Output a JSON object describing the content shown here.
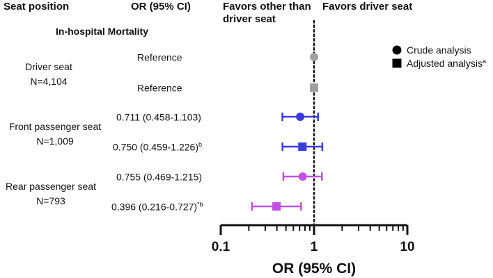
{
  "headers": {
    "seat_position": "Seat position",
    "or_ci": "OR (95% CI)",
    "favors_other_line1": "Favors other than",
    "favors_other_line2": "driver seat",
    "favors_driver": "Favors driver seat"
  },
  "section_title": "In-hospital Mortality",
  "groups": [
    {
      "name": "Driver seat",
      "n": "N=4,104"
    },
    {
      "name": "Front passenger seat",
      "n": "N=1,009"
    },
    {
      "name": "Rear passenger seat",
      "n": "N=793"
    }
  ],
  "rows": [
    {
      "label": "Reference",
      "sup": ""
    },
    {
      "label": "Reference",
      "sup": ""
    },
    {
      "label": "0.711 (0.458-1.103)",
      "sup": ""
    },
    {
      "label": "0.750 (0.459-1.226)",
      "sup": "b"
    },
    {
      "label": "0.755 (0.469-1.215)",
      "sup": ""
    },
    {
      "label": "0.396 (0.216-0.727)",
      "sup": "*b"
    }
  ],
  "legend": {
    "crude": "Crude analysis",
    "adjusted": "Adjusted analysis",
    "adjusted_sup": "a"
  },
  "colors": {
    "reference": "#a0a0a0",
    "front": "#3a3ae0",
    "rear": "#c050e0",
    "axis": "#111111"
  },
  "chart_data": {
    "type": "forest",
    "xlabel": "OR (95% CI)",
    "xscale": "log",
    "xlim": [
      0.1,
      10
    ],
    "ticks": [
      0.1,
      1,
      10
    ],
    "tick_labels": [
      "0.1",
      "1",
      "10"
    ],
    "reference_line": 1,
    "series": [
      {
        "name": "Driver seat crude",
        "marker": "circle",
        "color_key": "reference",
        "or": 1.0,
        "lo": null,
        "hi": null
      },
      {
        "name": "Driver seat adjusted",
        "marker": "square",
        "color_key": "reference",
        "or": 1.0,
        "lo": null,
        "hi": null
      },
      {
        "name": "Front passenger seat crude",
        "marker": "circle",
        "color_key": "front",
        "or": 0.711,
        "lo": 0.458,
        "hi": 1.103
      },
      {
        "name": "Front passenger seat adjusted",
        "marker": "square",
        "color_key": "front",
        "or": 0.75,
        "lo": 0.459,
        "hi": 1.226
      },
      {
        "name": "Rear passenger seat crude",
        "marker": "circle",
        "color_key": "rear",
        "or": 0.755,
        "lo": 0.469,
        "hi": 1.215
      },
      {
        "name": "Rear passenger seat adjusted",
        "marker": "square",
        "color_key": "rear",
        "or": 0.396,
        "lo": 0.216,
        "hi": 0.727
      }
    ]
  }
}
